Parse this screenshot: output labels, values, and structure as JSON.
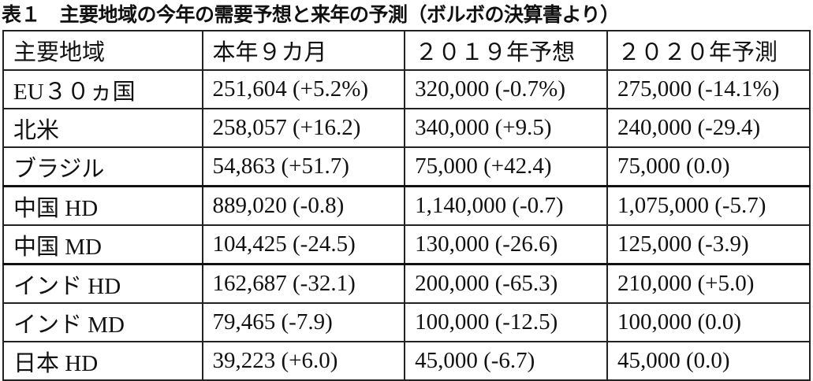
{
  "title": "表１　主要地域の今年の需要予想と来年の予測（ボルボの決算書より）",
  "table": {
    "headers": [
      "主要地域",
      "本年９カ月",
      "２０１９年予想",
      "２０２０年予測"
    ],
    "rows": [
      [
        "EU３０ヵ国",
        "251,604 (+5.2%)",
        "320,000 (-0.7%)",
        "275,000 (-14.1%)"
      ],
      [
        "北米",
        "258,057 (+16.2)",
        "340,000 (+9.5)",
        "240,000 (-29.4)"
      ],
      [
        "ブラジル",
        "54,863 (+51.7)",
        "75,000 (+42.4)",
        "75,000 (0.0)"
      ],
      [
        "中国 HD",
        "889,020 (-0.8)",
        "1,140,000 (-0.7)",
        "1,075,000 (-5.7)"
      ],
      [
        "中国 MD",
        "104,425 (-24.5)",
        "130,000 (-26.6)",
        "125,000 (-3.9)"
      ],
      [
        "インド HD",
        "162,687 (-32.1)",
        "200,000 (-65.3)",
        "210,000 (+5.0)"
      ],
      [
        "インド MD",
        "79,465 (-7.9)",
        "100,000 (-12.5)",
        "100,000 (0.0)"
      ],
      [
        "日本 HD",
        "39,223 (+6.0)",
        "45,000 (-6.7)",
        "45,000 (0.0)"
      ]
    ]
  }
}
